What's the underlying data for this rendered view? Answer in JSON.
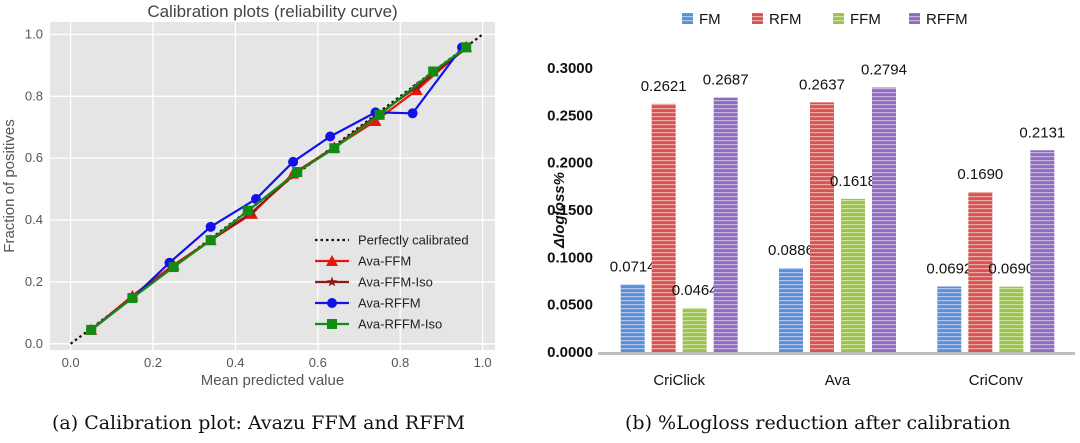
{
  "captions": {
    "a": "(a) Calibration plot: Avazu FFM and RFFM",
    "b": "(b) %Logloss reduction after calibration"
  },
  "chart_data": [
    {
      "type": "line",
      "title": "Calibration plots (reliability curve)",
      "xlabel": "Mean predicted value",
      "ylabel": "Fraction of positives",
      "xlim": [
        -0.05,
        1.03
      ],
      "ylim": [
        -0.02,
        1.04
      ],
      "x_ticks": [
        "0.0",
        "0.2",
        "0.4",
        "0.6",
        "0.8",
        "1.0"
      ],
      "y_ticks": [
        "0.0",
        "0.2",
        "0.4",
        "0.6",
        "0.8",
        "1.0"
      ],
      "grid": true,
      "legend_position": "bottom-right",
      "series": [
        {
          "name": "Perfectly calibrated",
          "color": "#111111",
          "style": "dotted",
          "marker": "none",
          "x": [
            0,
            1
          ],
          "y": [
            0,
            1
          ]
        },
        {
          "name": "Ava-FFM",
          "color": "#e8160c",
          "style": "solid",
          "marker": "triangle",
          "x": [
            0.05,
            0.15,
            0.25,
            0.34,
            0.44,
            0.54,
            0.64,
            0.74,
            0.84,
            0.96
          ],
          "y": [
            0.045,
            0.155,
            0.255,
            0.335,
            0.42,
            0.55,
            0.635,
            0.72,
            0.82,
            0.96
          ]
        },
        {
          "name": "Ava-FFM-Iso",
          "color": "#8b1a1a",
          "style": "solid",
          "marker": "star",
          "x": [
            0.05,
            0.15,
            0.25,
            0.34,
            0.44,
            0.55,
            0.64,
            0.74,
            0.84,
            0.96
          ],
          "y": [
            0.045,
            0.15,
            0.25,
            0.335,
            0.425,
            0.555,
            0.635,
            0.735,
            0.83,
            0.955
          ]
        },
        {
          "name": "Ava-RFFM",
          "color": "#1212e8",
          "style": "solid",
          "marker": "circle",
          "x": [
            0.05,
            0.15,
            0.24,
            0.34,
            0.45,
            0.54,
            0.63,
            0.74,
            0.83,
            0.95
          ],
          "y": [
            0.045,
            0.148,
            0.262,
            0.378,
            0.468,
            0.588,
            0.67,
            0.748,
            0.745,
            0.958
          ]
        },
        {
          "name": "Ava-RFFM-Iso",
          "color": "#138a13",
          "style": "solid",
          "marker": "square",
          "x": [
            0.05,
            0.15,
            0.25,
            0.34,
            0.43,
            0.55,
            0.64,
            0.75,
            0.88,
            0.96
          ],
          "y": [
            0.045,
            0.148,
            0.248,
            0.335,
            0.43,
            0.555,
            0.632,
            0.74,
            0.88,
            0.958
          ]
        }
      ]
    },
    {
      "type": "bar",
      "xlabel": "",
      "ylabel": "Δlogloss%",
      "ylim": [
        0,
        0.3
      ],
      "y_ticks": [
        "0.0000",
        "0.0500",
        "0.1000",
        "0.1500",
        "0.2000",
        "0.2500",
        "0.3000"
      ],
      "categories": [
        "CriClick",
        "Ava",
        "CriConv"
      ],
      "legend_position": "top",
      "series": [
        {
          "name": "FM",
          "color": "#5b8ed6",
          "values": [
            0.0714,
            0.0886,
            0.0692
          ],
          "labels": [
            "0.0714",
            "0.0886",
            "0.0692"
          ]
        },
        {
          "name": "RFM",
          "color": "#d9534f",
          "values": [
            0.2621,
            0.2637,
            0.169
          ],
          "labels": [
            "0.2621",
            "0.2637",
            "0.1690"
          ]
        },
        {
          "name": "FFM",
          "color": "#9bc34b",
          "values": [
            0.0464,
            0.1618,
            0.069
          ],
          "labels": [
            "0.0464",
            "0.1618",
            "0.0690"
          ]
        },
        {
          "name": "RFFM",
          "color": "#8e6bbf",
          "values": [
            0.2687,
            0.2794,
            0.2131
          ],
          "labels": [
            "0.2687",
            "0.2794",
            "0.2131"
          ]
        }
      ]
    }
  ]
}
